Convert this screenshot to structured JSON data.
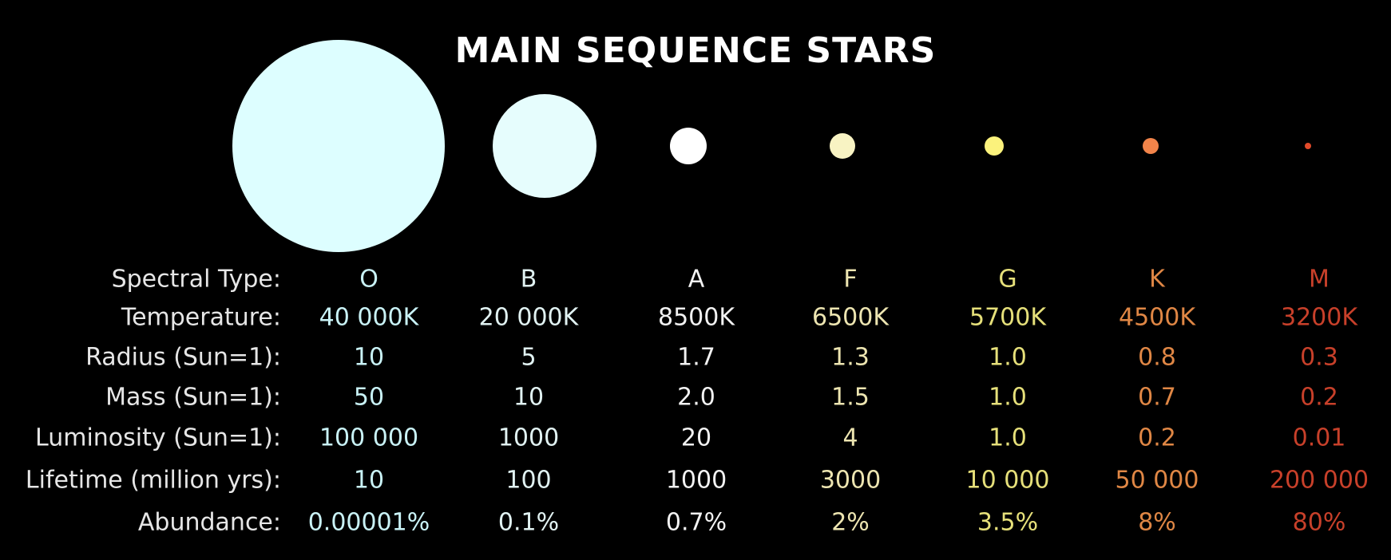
{
  "title": "MAIN SEQUENCE STARS",
  "row_labels": [
    "Spectral Type:",
    "Temperature:",
    "Radius (Sun=1):",
    "Mass (Sun=1):",
    "Luminosity (Sun=1):",
    "Lifetime (million yrs):",
    "Abundance:"
  ],
  "stars": [
    {
      "type": "O",
      "temperature": "40 000K",
      "radius": "10",
      "mass": "50",
      "luminosity": "100 000",
      "lifetime": "10",
      "abundance": "0.00001%",
      "color": "#ddfeff",
      "text_color": "#c9f2f6"
    },
    {
      "type": "B",
      "temperature": "20 000K",
      "radius": "5",
      "mass": "10",
      "luminosity": "1000",
      "lifetime": "100",
      "abundance": "0.1%",
      "color": "#e6fdfd",
      "text_color": "#e1f2f2"
    },
    {
      "type": "A",
      "temperature": "8500K",
      "radius": "1.7",
      "mass": "2.0",
      "luminosity": "20",
      "lifetime": "1000",
      "abundance": "0.7%",
      "color": "#ffffff",
      "text_color": "#f2f2f2"
    },
    {
      "type": "F",
      "temperature": "6500K",
      "radius": "1.3",
      "mass": "1.5",
      "luminosity": "4",
      "lifetime": "3000",
      "abundance": "2%",
      "color": "#f8f3c3",
      "text_color": "#ede5b1"
    },
    {
      "type": "G",
      "temperature": "5700K",
      "radius": "1.0",
      "mass": "1.0",
      "luminosity": "1.0",
      "lifetime": "10 000",
      "abundance": "3.5%",
      "color": "#fbf27c",
      "text_color": "#e6e07a"
    },
    {
      "type": "K",
      "temperature": "4500K",
      "radius": "0.8",
      "mass": "0.7",
      "luminosity": "0.2",
      "lifetime": "50 000",
      "abundance": "8%",
      "color": "#f2844a",
      "text_color": "#e08745"
    },
    {
      "type": "M",
      "temperature": "3200K",
      "radius": "0.3",
      "mass": "0.2",
      "luminosity": "0.01",
      "lifetime": "200 000",
      "abundance": "80%",
      "color": "#e24a2a",
      "text_color": "#c8402a"
    }
  ]
}
